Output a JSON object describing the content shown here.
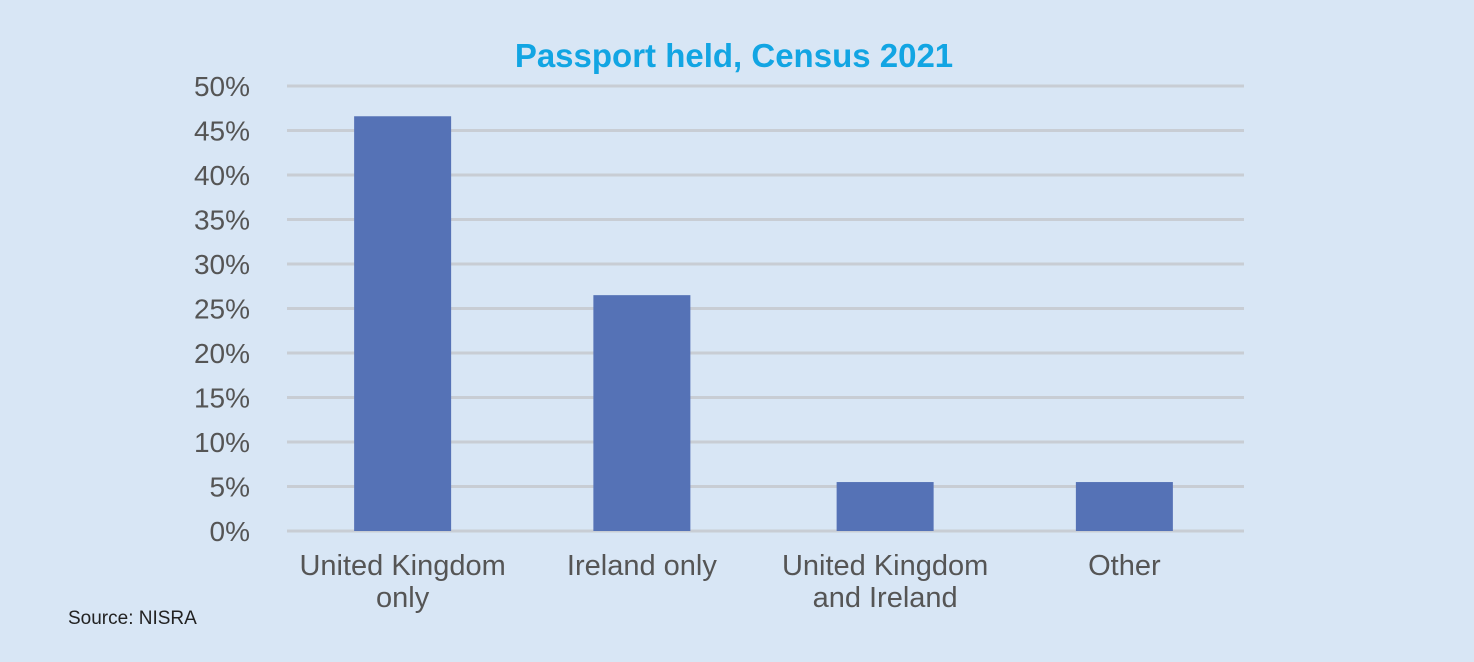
{
  "source": "Source: NISRA",
  "colors": {
    "background": "#d8e6f5",
    "bar": "#5572b6",
    "title": "#12a5e3",
    "grid": "#c8cdd4",
    "axis_text": "#555555",
    "source_text": "#222222"
  },
  "chart_data": {
    "type": "bar",
    "title": "Passport held, Census 2021",
    "xlabel": "",
    "ylabel": "",
    "categories": [
      [
        "United Kingdom",
        "only"
      ],
      [
        "Ireland only"
      ],
      [
        "United Kingdom",
        "and Ireland"
      ],
      [
        "Other"
      ]
    ],
    "values": [
      46.6,
      26.5,
      5.5,
      5.5
    ],
    "ylim": [
      0,
      50
    ],
    "y_tick_step": 5,
    "y_tick_labels": [
      "0%",
      "5%",
      "10%",
      "15%",
      "20%",
      "25%",
      "30%",
      "35%",
      "40%",
      "45%",
      "50%"
    ],
    "grid": true,
    "legend": "none"
  }
}
